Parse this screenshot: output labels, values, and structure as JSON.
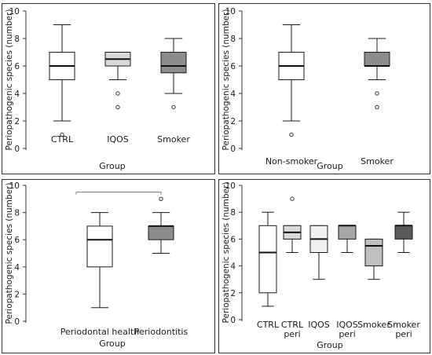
{
  "chart_data": [
    {
      "type": "boxplot",
      "ylabel": "Periopathogenic species (number)",
      "xlabel": "Group",
      "ylim": [
        0,
        10
      ],
      "yticks": [
        "0",
        "2",
        "4",
        "6",
        "8",
        "10"
      ],
      "categories": [
        "CTRL",
        "IQOS",
        "Smoker"
      ],
      "boxes": [
        {
          "min": 2,
          "q1": 5,
          "median": 6,
          "q3": 7,
          "max": 9,
          "outliers": [
            1
          ],
          "color": "#ffffff"
        },
        {
          "min": 5,
          "q1": 6,
          "median": 6.5,
          "q3": 7,
          "max": 7,
          "outliers": [
            4,
            3
          ],
          "color": "#d9d9d9"
        },
        {
          "min": 4,
          "q1": 5.5,
          "median": 6,
          "q3": 7,
          "max": 8,
          "outliers": [
            3
          ],
          "color": "#8c8c8c"
        }
      ]
    },
    {
      "type": "boxplot",
      "ylabel": "Periopathogenic species (number)",
      "xlabel": "Group",
      "ylim": [
        0,
        10
      ],
      "yticks": [
        "0",
        "2",
        "4",
        "6",
        "8",
        "10"
      ],
      "categories": [
        "Non-smoker",
        "Smoker"
      ],
      "boxes": [
        {
          "min": 2,
          "q1": 5,
          "median": 6,
          "q3": 7,
          "max": 9,
          "outliers": [
            1
          ],
          "color": "#ffffff"
        },
        {
          "min": 5,
          "q1": 6,
          "median": 6,
          "q3": 7,
          "max": 8,
          "outliers": [
            4,
            3
          ],
          "color": "#8c8c8c"
        }
      ]
    },
    {
      "type": "boxplot",
      "ylabel": "Periopathogenic species (number)",
      "xlabel": "Group",
      "ylim": [
        0,
        10
      ],
      "yticks": [
        "0",
        "2",
        "4",
        "6",
        "8",
        "10"
      ],
      "categories": [
        "Periodontal health",
        "Periodontitis"
      ],
      "bracket": true,
      "boxes": [
        {
          "min": 1,
          "q1": 4,
          "median": 6,
          "q3": 7,
          "max": 8,
          "outliers": [],
          "color": "#ffffff"
        },
        {
          "min": 5,
          "q1": 6,
          "median": 7,
          "q3": 7,
          "max": 8,
          "outliers": [
            9
          ],
          "color": "#8c8c8c"
        }
      ]
    },
    {
      "type": "boxplot",
      "ylabel": "Periopathogenic species (number)",
      "xlabel": "Group",
      "ylim": [
        0,
        10
      ],
      "yticks": [
        "0",
        "2",
        "4",
        "6",
        "8",
        "10"
      ],
      "categories": [
        "CTRL",
        "CTRL\nperi",
        "IQOS",
        "IQOS\nperi",
        "Smoker",
        "Smoker\nperi"
      ],
      "boxes": [
        {
          "min": 1,
          "q1": 2,
          "median": 5,
          "q3": 7,
          "max": 8,
          "outliers": [],
          "color": "#ffffff"
        },
        {
          "min": 5,
          "q1": 6,
          "median": 6.5,
          "q3": 7,
          "max": 7,
          "outliers": [
            9
          ],
          "color": "#d9d9d9"
        },
        {
          "min": 3,
          "q1": 5,
          "median": 6,
          "q3": 7,
          "max": 7,
          "outliers": [],
          "color": "#f0f0f0"
        },
        {
          "min": 5,
          "q1": 6,
          "median": 7,
          "q3": 7,
          "max": 7,
          "outliers": [],
          "color": "#a6a6a6"
        },
        {
          "min": 3,
          "q1": 4,
          "median": 5.5,
          "q3": 6,
          "max": 6,
          "outliers": [],
          "color": "#bfbfbf"
        },
        {
          "min": 5,
          "q1": 6,
          "median": 7,
          "q3": 7,
          "max": 8,
          "outliers": [],
          "color": "#595959"
        }
      ]
    }
  ]
}
